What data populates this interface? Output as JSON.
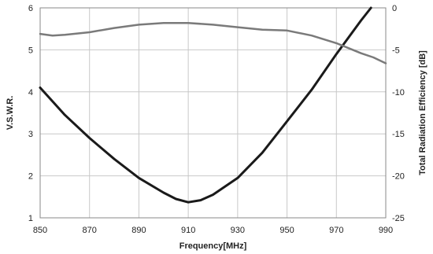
{
  "chart_data": {
    "type": "line",
    "xlabel": "Frequency[MHz]",
    "ylabel_left": "V.S.W.R.",
    "ylabel_right": "Total Radiation Efficiency [dB]",
    "xlim": [
      850,
      990
    ],
    "ylim_left": [
      1,
      6
    ],
    "ylim_right": [
      -25,
      0
    ],
    "x_ticks": [
      850,
      870,
      890,
      910,
      930,
      950,
      970,
      990
    ],
    "y_left_ticks": [
      1,
      2,
      3,
      4,
      5,
      6
    ],
    "y_right_ticks": [
      -25,
      -20,
      -15,
      -10,
      -5,
      0
    ],
    "grid": true,
    "series": [
      {
        "axis": "left",
        "color": "#1a1a1a",
        "x": [
          850,
          860,
          870,
          880,
          890,
          900,
          905,
          910,
          915,
          920,
          930,
          940,
          950,
          960,
          970,
          980,
          984
        ],
        "values": [
          4.1,
          3.45,
          2.9,
          2.4,
          1.95,
          1.6,
          1.45,
          1.37,
          1.42,
          1.55,
          1.95,
          2.55,
          3.3,
          4.05,
          4.9,
          5.7,
          6.0
        ]
      },
      {
        "axis": "right",
        "color": "#7a7a7a",
        "x": [
          850,
          855,
          860,
          870,
          880,
          890,
          900,
          910,
          920,
          930,
          940,
          950,
          960,
          970,
          975,
          980,
          985,
          990
        ],
        "values": [
          -3.1,
          -3.3,
          -3.2,
          -2.9,
          -2.4,
          -2.0,
          -1.8,
          -1.8,
          -2.0,
          -2.3,
          -2.6,
          -2.7,
          -3.3,
          -4.2,
          -4.8,
          -5.4,
          -5.9,
          -6.6
        ]
      }
    ]
  }
}
